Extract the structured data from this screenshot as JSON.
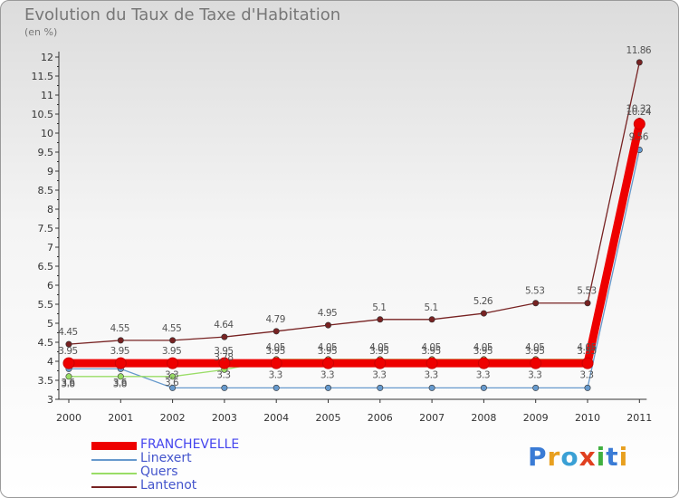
{
  "header": {
    "title": "Evolution du Taux de Taxe d'Habitation",
    "unit": "(en %)"
  },
  "logo": {
    "text": "Proxiti",
    "letters": [
      {
        "ch": "P",
        "color": "#3a7bd5"
      },
      {
        "ch": "r",
        "color": "#e8a020"
      },
      {
        "ch": "o",
        "color": "#3aa0d5"
      },
      {
        "ch": "x",
        "color": "#e04020"
      },
      {
        "ch": "i",
        "color": "#40b040"
      },
      {
        "ch": "t",
        "color": "#3a7bd5"
      },
      {
        "ch": "i",
        "color": "#e8a020"
      }
    ]
  },
  "chart_data": {
    "type": "line",
    "title": "Evolution du Taux de Taxe d'Habitation",
    "ylabel": "(en %)",
    "xlabel": "",
    "x": [
      "2000",
      "2001",
      "2002",
      "2003",
      "2004",
      "2005",
      "2006",
      "2007",
      "2008",
      "2009",
      "2010",
      "2011"
    ],
    "ylim": [
      3,
      12
    ],
    "yticks": [
      "3",
      "3.5",
      "4",
      "4.5",
      "5",
      "5.5",
      "6",
      "6.5",
      "7",
      "7.5",
      "8",
      "8.5",
      "9",
      "9.5",
      "10",
      "10.5",
      "11",
      "11.5",
      "12"
    ],
    "grid": false,
    "legend_position": "bottom-left",
    "series": [
      {
        "name": "FRANCHEVELLE",
        "color": "#ee0000",
        "values": [
          3.95,
          3.95,
          3.95,
          3.95,
          3.95,
          3.95,
          3.95,
          3.95,
          3.95,
          3.95,
          3.95,
          10.24
        ],
        "labels": [
          "3.95",
          "3.95",
          "3.95",
          "3.95",
          "3.95",
          "3.95",
          "3.95",
          "3.95",
          "3.95",
          "3.95",
          "3.95",
          "10.24"
        ]
      },
      {
        "name": "Linexert",
        "color": "#6699cc",
        "values": [
          3.8,
          3.8,
          3.3,
          3.3,
          3.3,
          3.3,
          3.3,
          3.3,
          3.3,
          3.3,
          3.3,
          9.56
        ],
        "labels": [
          "3.8",
          "3.8",
          "3.3",
          "3.3",
          "3.3",
          "3.3",
          "3.3",
          "3.3",
          "3.3",
          "3.3",
          "3.3",
          "9.56"
        ]
      },
      {
        "name": "Quers",
        "color": "#99dd66",
        "values": [
          3.6,
          3.6,
          3.6,
          3.78,
          4.05,
          4.05,
          4.05,
          4.05,
          4.05,
          4.05,
          4.05,
          10.32
        ],
        "labels": [
          "3.6",
          "3.6",
          "3.6",
          "3.78",
          "4.05",
          "4.05",
          "4.05",
          "4.05",
          "4.05",
          "4.05",
          "4.05",
          "10.32"
        ]
      },
      {
        "name": "Lantenot",
        "color": "#772222",
        "values": [
          4.45,
          4.55,
          4.55,
          4.64,
          4.79,
          4.95,
          5.1,
          5.1,
          5.26,
          5.53,
          5.53,
          11.86
        ],
        "labels": [
          "4.45",
          "4.55",
          "4.55",
          "4.64",
          "4.79",
          "4.95",
          "5.1",
          "5.1",
          "5.26",
          "5.53",
          "5.53",
          "11.86"
        ]
      }
    ]
  }
}
